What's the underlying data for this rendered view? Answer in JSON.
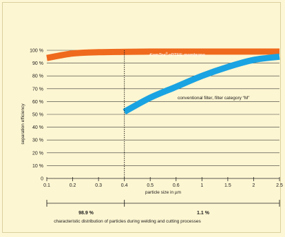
{
  "chart_data": {
    "type": "line",
    "title": "",
    "xlabel": "particle size in µm",
    "ylabel": "separation efficiency",
    "x_ticks": [
      "0.1",
      "0.2",
      "0.3",
      "0.4",
      "0.5",
      "0.6",
      "1",
      "1.5",
      "2",
      "2.5"
    ],
    "y_ticks": [
      "0",
      "10 %",
      "20 %",
      "30 %",
      "40 %",
      "50 %",
      "60 %",
      "70 %",
      "80 %",
      "90 %",
      "100 %"
    ],
    "ylim": [
      0,
      100
    ],
    "grid": true,
    "series": [
      {
        "name": "ePTFE membrane",
        "name_prefix": "KemTex",
        "name_mark": "®",
        "color": "#ef6a1d",
        "x": [
          "0.1",
          "0.2",
          "0.3",
          "0.4",
          "0.5",
          "0.6",
          "1",
          "1.5",
          "2",
          "2.5"
        ],
        "y": [
          94,
          97.5,
          98.5,
          98.8,
          99,
          99,
          99,
          99,
          99,
          99
        ]
      },
      {
        "name": "conventional filter, filter category “M”",
        "color": "#1aa3e2",
        "x": [
          "0.4",
          "0.5",
          "0.6",
          "1",
          "1.5",
          "2",
          "2.5"
        ],
        "y": [
          52,
          63,
          71.5,
          80,
          87,
          92.5,
          95
        ]
      }
    ],
    "reference_line": {
      "x": "0.4",
      "style": "dotted"
    },
    "distribution": {
      "caption": "characteristic distribution of particles during welding and cutting processes",
      "segments": [
        {
          "from": "0.1",
          "to": "0.4",
          "value": "98.9 %"
        },
        {
          "from": "0.4",
          "to": "2.5",
          "value": "1.1 %"
        }
      ]
    }
  }
}
